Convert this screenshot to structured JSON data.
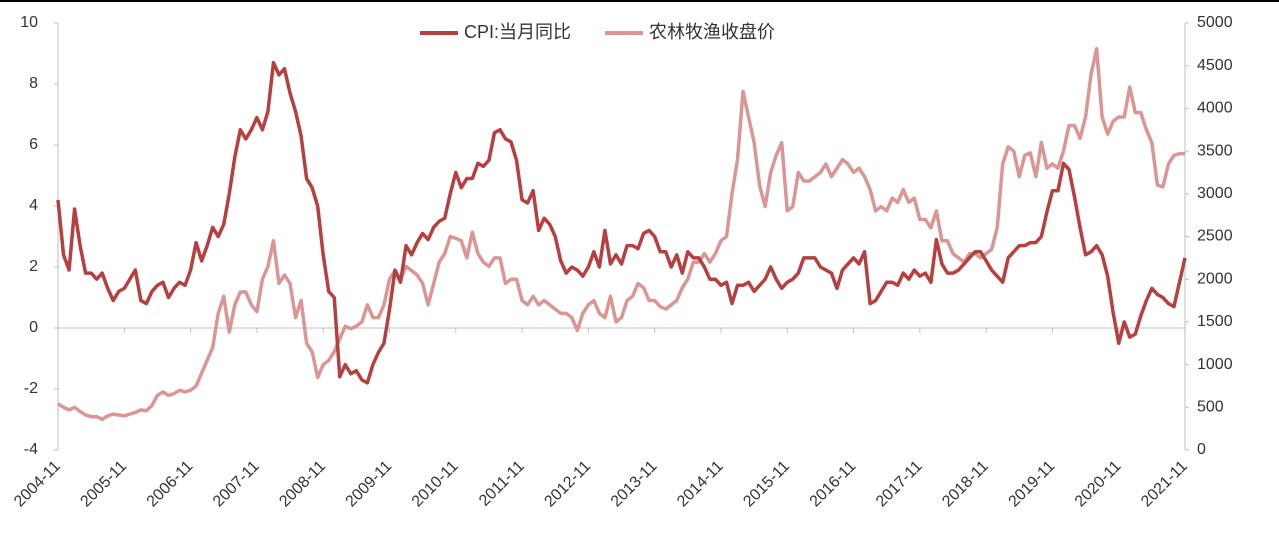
{
  "chart_data": {
    "type": "line",
    "categories": [
      "2004-11",
      null,
      null,
      null,
      null,
      null,
      null,
      null,
      null,
      null,
      null,
      null,
      "2005-11",
      null,
      null,
      null,
      null,
      null,
      null,
      null,
      null,
      null,
      null,
      null,
      "2006-11",
      null,
      null,
      null,
      null,
      null,
      null,
      null,
      null,
      null,
      null,
      null,
      "2007-11",
      null,
      null,
      null,
      null,
      null,
      null,
      null,
      null,
      null,
      null,
      null,
      "2008-11",
      null,
      null,
      null,
      null,
      null,
      null,
      null,
      null,
      null,
      null,
      null,
      "2009-11",
      null,
      null,
      null,
      null,
      null,
      null,
      null,
      null,
      null,
      null,
      null,
      "2010-11",
      null,
      null,
      null,
      null,
      null,
      null,
      null,
      null,
      null,
      null,
      null,
      "2011-11",
      null,
      null,
      null,
      null,
      null,
      null,
      null,
      null,
      null,
      null,
      null,
      "2012-11",
      null,
      null,
      null,
      null,
      null,
      null,
      null,
      null,
      null,
      null,
      null,
      "2013-11",
      null,
      null,
      null,
      null,
      null,
      null,
      null,
      null,
      null,
      null,
      null,
      "2014-11",
      null,
      null,
      null,
      null,
      null,
      null,
      null,
      null,
      null,
      null,
      null,
      "2015-11",
      null,
      null,
      null,
      null,
      null,
      null,
      null,
      null,
      null,
      null,
      null,
      "2016-11",
      null,
      null,
      null,
      null,
      null,
      null,
      null,
      null,
      null,
      null,
      null,
      "2017-11",
      null,
      null,
      null,
      null,
      null,
      null,
      null,
      null,
      null,
      null,
      null,
      "2018-11",
      null,
      null,
      null,
      null,
      null,
      null,
      null,
      null,
      null,
      null,
      null,
      "2019-11",
      null,
      null,
      null,
      null,
      null,
      null,
      null,
      null,
      null,
      null,
      null,
      "2020-11",
      null,
      null,
      null,
      null,
      null,
      null,
      null,
      null,
      null,
      null,
      null,
      "2021-11"
    ],
    "series": [
      {
        "name": "CPI:当月同比",
        "color": "#b5403f",
        "values": [
          4.2,
          2.4,
          1.9,
          3.9,
          2.7,
          1.8,
          1.8,
          1.6,
          1.8,
          1.3,
          0.9,
          1.2,
          1.3,
          1.6,
          1.9,
          0.9,
          0.8,
          1.2,
          1.4,
          1.5,
          1.0,
          1.3,
          1.5,
          1.4,
          1.9,
          2.8,
          2.2,
          2.7,
          3.3,
          3.0,
          3.4,
          4.4,
          5.6,
          6.5,
          6.2,
          6.5,
          6.9,
          6.5,
          7.1,
          8.7,
          8.3,
          8.5,
          7.7,
          7.1,
          6.3,
          4.9,
          4.6,
          4.0,
          2.4,
          1.2,
          1.0,
          -1.6,
          -1.2,
          -1.5,
          -1.4,
          -1.7,
          -1.8,
          -1.2,
          -0.8,
          -0.5,
          0.6,
          1.9,
          1.5,
          2.7,
          2.4,
          2.8,
          3.1,
          2.9,
          3.3,
          3.5,
          3.6,
          4.4,
          5.1,
          4.6,
          4.9,
          4.9,
          5.4,
          5.3,
          5.5,
          6.4,
          6.5,
          6.2,
          6.1,
          5.5,
          4.2,
          4.1,
          4.5,
          3.2,
          3.6,
          3.4,
          3.0,
          2.2,
          1.8,
          2.0,
          1.9,
          1.7,
          2.0,
          2.5,
          2.0,
          3.2,
          2.1,
          2.4,
          2.1,
          2.7,
          2.7,
          2.6,
          3.1,
          3.2,
          3.0,
          2.5,
          2.5,
          2.0,
          2.4,
          1.8,
          2.5,
          2.3,
          2.3,
          2.0,
          1.6,
          1.6,
          1.4,
          1.5,
          0.8,
          1.4,
          1.4,
          1.5,
          1.2,
          1.4,
          1.6,
          2.0,
          1.6,
          1.3,
          1.5,
          1.6,
          1.8,
          2.3,
          2.3,
          2.3,
          2.0,
          1.9,
          1.8,
          1.3,
          1.9,
          2.1,
          2.3,
          2.1,
          2.5,
          0.8,
          0.9,
          1.2,
          1.5,
          1.5,
          1.4,
          1.8,
          1.6,
          1.9,
          1.7,
          1.8,
          1.5,
          2.9,
          2.1,
          1.8,
          1.8,
          1.9,
          2.1,
          2.3,
          2.5,
          2.5,
          2.2,
          1.9,
          1.7,
          1.5,
          2.3,
          2.5,
          2.7,
          2.7,
          2.8,
          2.8,
          3.0,
          3.8,
          4.5,
          4.5,
          5.4,
          5.2,
          4.3,
          3.3,
          2.4,
          2.5,
          2.7,
          2.4,
          1.7,
          0.5,
          -0.5,
          0.2,
          -0.3,
          -0.2,
          0.4,
          0.9,
          1.3,
          1.1,
          1.0,
          0.8,
          0.7,
          1.5,
          2.3
        ]
      },
      {
        "name": "农林牧渔收盘价",
        "color": "#d99694",
        "axis": "y2",
        "values": [
          540,
          500,
          470,
          500,
          450,
          410,
          390,
          390,
          360,
          400,
          420,
          410,
          400,
          420,
          440,
          470,
          460,
          520,
          640,
          680,
          640,
          660,
          700,
          680,
          700,
          750,
          900,
          1050,
          1200,
          1600,
          1800,
          1380,
          1700,
          1850,
          1850,
          1700,
          1620,
          2000,
          2150,
          2450,
          1950,
          2050,
          1950,
          1550,
          1750,
          1250,
          1150,
          850,
          1000,
          1050,
          1150,
          1300,
          1450,
          1420,
          1450,
          1500,
          1700,
          1550,
          1550,
          1700,
          2000,
          2100,
          2000,
          2150,
          2100,
          2050,
          1950,
          1700,
          1950,
          2200,
          2300,
          2500,
          2480,
          2450,
          2250,
          2550,
          2300,
          2200,
          2150,
          2250,
          2250,
          1950,
          2000,
          2000,
          1750,
          1700,
          1800,
          1700,
          1750,
          1700,
          1650,
          1600,
          1600,
          1550,
          1400,
          1600,
          1700,
          1750,
          1600,
          1550,
          1800,
          1500,
          1550,
          1750,
          1800,
          1950,
          1900,
          1750,
          1750,
          1680,
          1650,
          1700,
          1750,
          1900,
          2000,
          2200,
          2200,
          2300,
          2200,
          2300,
          2450,
          2500,
          3000,
          3400,
          4200,
          3900,
          3600,
          3100,
          2850,
          3250,
          3450,
          3600,
          2800,
          2850,
          3250,
          3150,
          3150,
          3200,
          3250,
          3350,
          3200,
          3300,
          3400,
          3350,
          3250,
          3300,
          3200,
          3050,
          2800,
          2850,
          2800,
          2950,
          2900,
          3050,
          2900,
          2950,
          2700,
          2700,
          2600,
          2800,
          2450,
          2450,
          2300,
          2250,
          2200,
          2300,
          2300,
          2250,
          2300,
          2350,
          2600,
          3350,
          3550,
          3500,
          3200,
          3450,
          3480,
          3200,
          3600,
          3300,
          3350,
          3300,
          3500,
          3800,
          3800,
          3650,
          3900,
          4400,
          4700,
          3900,
          3700,
          3850,
          3900,
          3900,
          4250,
          3950,
          3950,
          3750,
          3600,
          3100,
          3080,
          3350,
          3450,
          3470,
          3470
        ]
      }
    ],
    "ylim": [
      -4,
      10
    ],
    "yticks": [
      -4,
      -2,
      0,
      2,
      4,
      6,
      8,
      10
    ],
    "y2lim": [
      0,
      5000
    ],
    "y2ticks": [
      0,
      500,
      1000,
      1500,
      2000,
      2500,
      3000,
      3500,
      4000,
      4500,
      5000
    ],
    "legend": "top"
  }
}
